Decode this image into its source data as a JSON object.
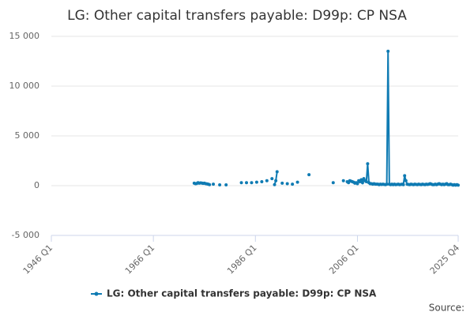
{
  "chart_data": {
    "type": "line",
    "title": "LG: Other capital transfers payable: D99p: CP NSA",
    "source": "Source:",
    "x": [
      1974,
      1974.25,
      1974.5,
      1974.75,
      1975,
      1975.25,
      1975.5,
      1975.75,
      1976,
      1976.25,
      1976.5,
      1976.75,
      1977,
      1977.25,
      1977.75,
      1978,
      1979,
      1979.25,
      1980.25,
      1980.5,
      1983.25,
      1983.5,
      1984.25,
      1984.5,
      1985.25,
      1985.5,
      1986.25,
      1986.5,
      1987.25,
      1987.5,
      1988.25,
      1988.5,
      1989.25,
      1989.5,
      1989.75,
      1990,
      1990.25,
      1990.5,
      1991.25,
      1991.5,
      1992.25,
      1992.5,
      1993.25,
      1993.5,
      1994.25,
      1994.5,
      1996.5,
      1996.75,
      2001.25,
      2001.5,
      2003.25,
      2003.5,
      2004,
      2004.25,
      2004.5,
      2004.75,
      2005,
      2005.25,
      2005.5,
      2005.75,
      2006,
      2006.25,
      2006.5,
      2006.75,
      2007,
      2007.25,
      2007.5,
      2007.75,
      2008,
      2008.25,
      2008.5,
      2008.75,
      2009,
      2009.25,
      2009.5,
      2009.75,
      2010,
      2010.25,
      2010.5,
      2010.75,
      2011,
      2011.25,
      2011.5,
      2011.75,
      2012,
      2012.25,
      2012.5,
      2012.75,
      2013,
      2013.25,
      2013.5,
      2013.75,
      2014,
      2014.25,
      2014.5,
      2014.75,
      2015,
      2015.25,
      2015.5,
      2015.75,
      2016,
      2016.25,
      2016.5,
      2016.75,
      2017,
      2017.25,
      2017.5,
      2017.75,
      2018,
      2018.25,
      2018.5,
      2018.75,
      2019,
      2019.25,
      2019.5,
      2019.75,
      2020,
      2020.25,
      2020.5,
      2020.75,
      2021,
      2021.25,
      2021.5,
      2021.75,
      2022,
      2022.25,
      2022.5,
      2022.75,
      2023,
      2023.25,
      2023.5,
      2023.75,
      2024,
      2024.25,
      2024.5,
      2024.75,
      2025,
      2025.25,
      2025.5,
      2025.75
    ],
    "series": [
      {
        "name": "LG: Other capital transfers payable: D99p: CP NSA",
        "color": "#0f7bb3",
        "values": [
          250,
          200,
          220,
          300,
          250,
          280,
          260,
          230,
          250,
          200,
          180,
          150,
          100,
          null,
          150,
          null,
          80,
          null,
          80,
          null,
          300,
          null,
          300,
          null,
          300,
          null,
          350,
          null,
          400,
          null,
          500,
          null,
          700,
          null,
          100,
          500,
          1400,
          null,
          250,
          null,
          200,
          null,
          150,
          null,
          350,
          null,
          1100,
          null,
          300,
          null,
          500,
          null,
          400,
          300,
          500,
          450,
          400,
          350,
          250,
          300,
          200,
          500,
          400,
          600,
          300,
          700,
          500,
          400,
          2200,
          300,
          200,
          200,
          150,
          200,
          150,
          150,
          150,
          100,
          150,
          120,
          150,
          120,
          100,
          150,
          13500,
          150,
          100,
          150,
          100,
          150,
          100,
          120,
          150,
          100,
          120,
          150,
          100,
          1000,
          500,
          150,
          120,
          100,
          150,
          120,
          100,
          150,
          120,
          100,
          150,
          120,
          100,
          150,
          120,
          100,
          150,
          120,
          150,
          200,
          150,
          100,
          100,
          150,
          100,
          150,
          200,
          150,
          100,
          150,
          100,
          150,
          200,
          100,
          100,
          150,
          100,
          50,
          100,
          50,
          100,
          50
        ]
      }
    ],
    "xlim": [
      1946,
      2025.75
    ],
    "xticks": [
      {
        "value": 1946,
        "label": "1946 Q1"
      },
      {
        "value": 1966,
        "label": "1966 Q1"
      },
      {
        "value": 1986,
        "label": "1986 Q1"
      },
      {
        "value": 2006,
        "label": "2006 Q1"
      },
      {
        "value": 2025.75,
        "label": "2025 Q4"
      }
    ],
    "ylim": [
      -5000,
      15000
    ],
    "yticks": [
      {
        "value": -5000,
        "label": "-5 000"
      },
      0,
      {
        "value": 5000,
        "label": "5 000"
      },
      {
        "value": 10000,
        "label": "10 000"
      },
      {
        "value": 15000,
        "label": "15 000"
      }
    ],
    "grid": true
  }
}
